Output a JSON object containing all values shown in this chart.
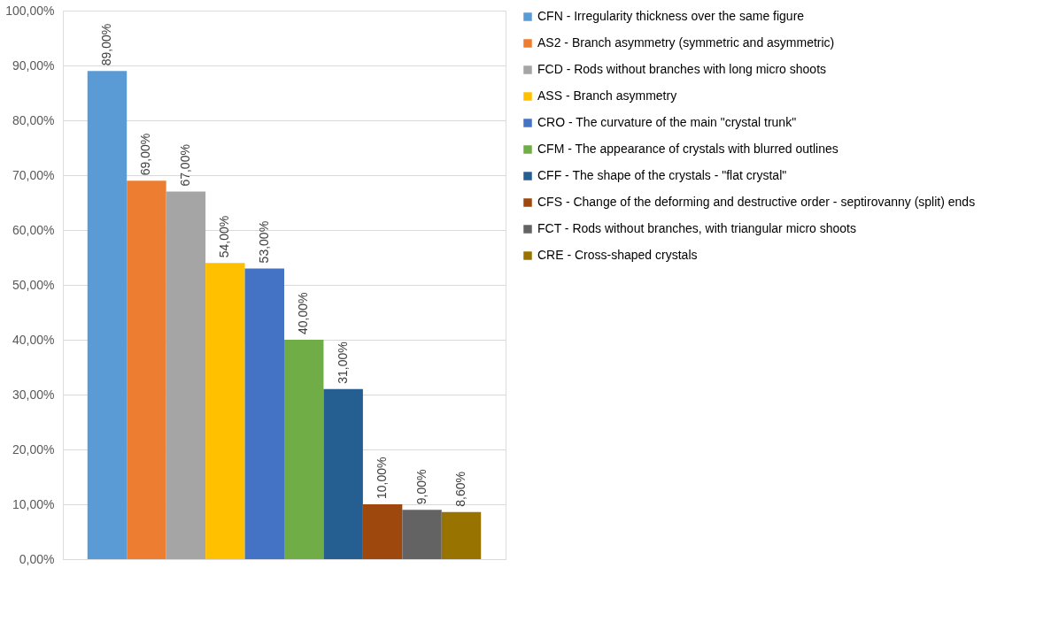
{
  "chart_data": {
    "type": "bar",
    "categories": [
      null
    ],
    "series": [
      {
        "name": "CFN - Irregularity thickness over the same figure",
        "color": "#5b9bd5",
        "values": [
          89
        ],
        "value_labels": [
          "89,00%"
        ]
      },
      {
        "name": "AS2 - Branch asymmetry (symmetric and asymmetric)",
        "color": "#ed7d31",
        "values": [
          69
        ],
        "value_labels": [
          "69,00%"
        ]
      },
      {
        "name": "FCD - Rods without branches with long micro shoots",
        "color": "#a5a5a5",
        "values": [
          67
        ],
        "value_labels": [
          "67,00%"
        ]
      },
      {
        "name": "ASS - Branch asymmetry",
        "color": "#ffc000",
        "values": [
          54
        ],
        "value_labels": [
          "54,00%"
        ]
      },
      {
        "name": "CRO - The curvature of the main \"crystal trunk\"",
        "color": "#4472c4",
        "values": [
          53
        ],
        "value_labels": [
          "53,00%"
        ]
      },
      {
        "name": "CFM - The appearance of crystals with blurred outlines",
        "color": "#70ad47",
        "values": [
          40
        ],
        "value_labels": [
          "40,00%"
        ]
      },
      {
        "name": "CFF - The shape of the crystals - \"flat crystal\"",
        "color": "#255e91",
        "values": [
          31
        ],
        "value_labels": [
          "31,00%"
        ]
      },
      {
        "name": "CFS - Change of the deforming and destructive order - septirovanny (split) ends",
        "color": "#9e480e",
        "values": [
          10
        ],
        "value_labels": [
          "10,00%"
        ]
      },
      {
        "name": "FCT - Rods without branches, with triangular micro shoots",
        "color": "#636363",
        "values": [
          9
        ],
        "value_labels": [
          "9,00%"
        ]
      },
      {
        "name": "CRE - Cross-shaped crystals",
        "color": "#997300",
        "values": [
          8.6
        ],
        "value_labels": [
          "8,60%"
        ]
      }
    ],
    "ylim": [
      0,
      100
    ],
    "yticks": [
      {
        "value": 0,
        "label": "0,00%"
      },
      {
        "value": 10,
        "label": "10,00%"
      },
      {
        "value": 20,
        "label": "20,00%"
      },
      {
        "value": 30,
        "label": "30,00%"
      },
      {
        "value": 40,
        "label": "40,00%"
      },
      {
        "value": 50,
        "label": "50,00%"
      },
      {
        "value": 60,
        "label": "60,00%"
      },
      {
        "value": 70,
        "label": "70,00%"
      },
      {
        "value": 80,
        "label": "80,00%"
      },
      {
        "value": 90,
        "label": "90,00%"
      },
      {
        "value": 100,
        "label": "100,00%"
      }
    ],
    "grid": "y",
    "legend": "right"
  }
}
